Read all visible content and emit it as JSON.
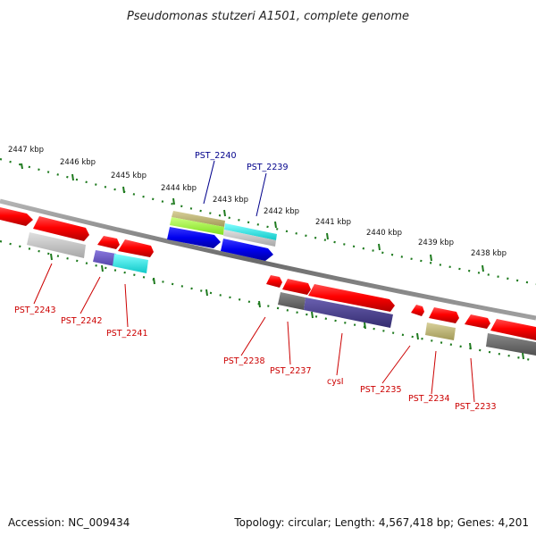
{
  "title": "Pseudomonas stutzeri A1501, complete genome",
  "accession_text": "Accession: NC_009434",
  "topology_text": "Topology: circular; Length: 4,567,418 bp; Genes: 4,201",
  "colors": {
    "backbone": "#7a7a7a",
    "ticks": "#1e7a1e",
    "forward_label": "#00008b",
    "reverse_label": "#cc0000",
    "gene_red": "#ff0000",
    "gene_blue": "#0000ee",
    "cds_olive": "#b5ac6a",
    "cds_lime": "#99ff33",
    "cds_cyan": "#22e0e0",
    "cds_gray": "#bbbbbb",
    "cds_dark": "#666666",
    "cds_slate": "#6655bb",
    "cds_navy": "#443c88"
  },
  "scale_labels": [
    "2447 kbp",
    "2446 kbp",
    "2445 kbp",
    "2444 kbp",
    "2443 kbp",
    "2442 kbp",
    "2441 kbp",
    "2440 kbp",
    "2439 kbp",
    "2438 kbp"
  ],
  "forward_genes": [
    "PST_2240",
    "PST_2239"
  ],
  "reverse_genes": [
    "PST_2243",
    "PST_2242",
    "PST_2241",
    "PST_2238",
    "PST_2237",
    "cysI",
    "PST_2235",
    "PST_2234",
    "PST_2233"
  ]
}
